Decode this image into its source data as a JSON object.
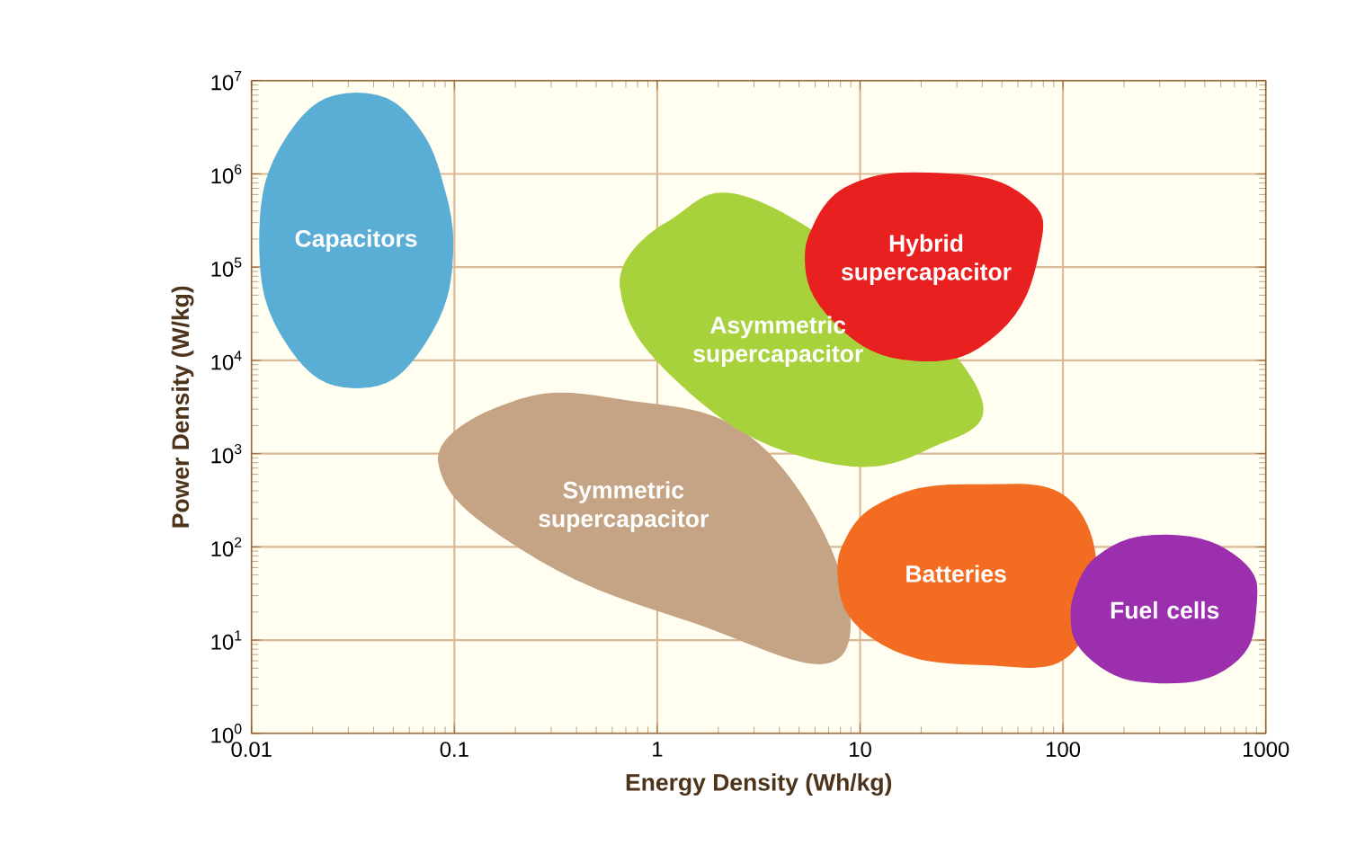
{
  "chart_data": {
    "type": "area",
    "xlabel": "Energy Density (Wh/kg)",
    "ylabel": "Power Density (W/kg)",
    "log": "xy",
    "grid": true,
    "xlim": [
      0.01,
      1000
    ],
    "ylim": [
      1,
      10000000
    ],
    "xticks": [
      0.01,
      0.1,
      1,
      10,
      100,
      1000
    ],
    "yticks": [
      {
        "value": 1,
        "label": "10$^{0}$"
      },
      {
        "value": 10,
        "label": "10$^{1}$"
      },
      {
        "value": 100,
        "label": "10$^{2}$"
      },
      {
        "value": 1000,
        "label": "10$^{3}$"
      },
      {
        "value": 10000,
        "label": "10$^{4}$"
      },
      {
        "value": 100000,
        "label": "10$^{5}$"
      },
      {
        "value": 1000000,
        "label": "10$^{6}$"
      },
      {
        "value": 10000000,
        "label": "10$^{7}$"
      }
    ],
    "series": [
      {
        "name": "Capacitors",
        "color": "#5aaed6",
        "x": [
          0.098,
          0.071,
          0.033,
          0.015,
          0.011,
          0.015,
          0.033,
          0.071
        ],
        "values": [
          190000,
          2500000,
          7300000,
          2500000,
          190000,
          15000,
          5100,
          15000
        ]
      },
      {
        "name": "Symmetric supercapacitor",
        "color": "#c4a484",
        "x": [
          0.084,
          0.157,
          0.59,
          3.7,
          8.4,
          1.34,
          0.21
        ],
        "values": [
          790,
          3000,
          3900,
          900,
          7.8,
          17,
          98
        ]
      },
      {
        "name": "Asymmetric supercapacitor",
        "color": "#a8d23c",
        "x": [
          0.66,
          1.09,
          3.7,
          35,
          21,
          5.6,
          1.34
        ],
        "values": [
          61000,
          290000,
          430000,
          6600,
          1100,
          900,
          5300
        ]
      },
      {
        "name": "Hybrid supercapacitor",
        "color": "#e82020",
        "x": [
          5.4,
          8.4,
          26,
          65,
          76,
          48,
          19,
          7.6
        ],
        "values": [
          150000,
          700000,
          1000000,
          560000,
          150000,
          20000,
          10000,
          25000
        ]
      },
      {
        "name": "Batteries",
        "color": "#f26c22",
        "x": [
          7.8,
          11.5,
          35,
          120,
          120,
          39,
          11.5
        ],
        "values": [
          63,
          260,
          460,
          240,
          9.3,
          5.5,
          10.6
        ]
      },
      {
        "name": "Fuel cells",
        "color": "#9b2fae",
        "x": [
          110,
          147,
          330,
          750,
          890,
          680,
          300,
          141
        ],
        "values": [
          21,
          78,
          133,
          72,
          21,
          5.5,
          3.5,
          6.0
        ]
      }
    ]
  }
}
